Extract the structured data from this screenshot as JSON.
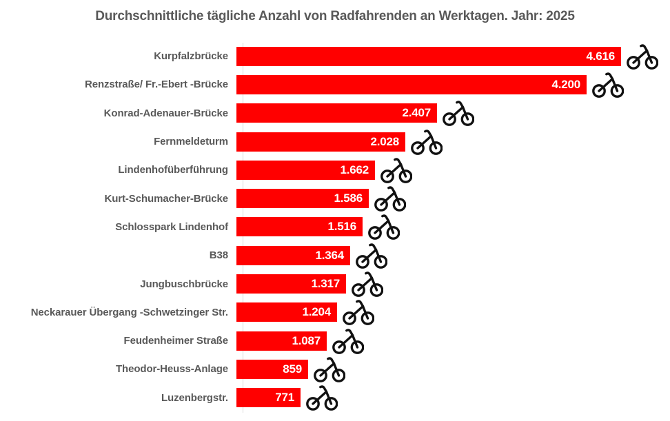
{
  "title": "Durchschnittliche tägliche Anzahl von Radfahrenden an Werktagen. Jahr: 2025",
  "colors": {
    "bar": "#ff0000",
    "value_text": "#ffffff",
    "label_text": "#595959",
    "title_text": "#595959",
    "axis_line": "#d9d9d9",
    "bike_icon": "#111111",
    "background": "#ffffff"
  },
  "icons": {
    "bar_end_icon": "bicycle-icon"
  },
  "chart_data": {
    "type": "bar",
    "orientation": "horizontal",
    "title": "Durchschnittliche tägliche Anzahl von Radfahrenden an Werktagen. Jahr: 2025",
    "xlabel": "",
    "ylabel": "",
    "grid": false,
    "legend": false,
    "xlim": [
      0,
      4616
    ],
    "categories": [
      "Kurpfalzbrücke",
      "Renzstraße/ Fr.-Ebert -Brücke",
      "Konrad-Adenauer-Brücke",
      "Fernmeldeturm",
      "Lindenhofüberführung",
      "Kurt-Schumacher-Brücke",
      "Schlosspark Lindenhof",
      "B38",
      "Jungbuschbrücke",
      "Neckarauer Übergang -Schwetzinger Str.",
      "Feudenheimer Straße",
      "Theodor-Heuss-Anlage",
      "Luzenbergstr."
    ],
    "values": [
      4616,
      4200,
      2407,
      2028,
      1662,
      1586,
      1516,
      1364,
      1317,
      1204,
      1087,
      859,
      771
    ],
    "value_labels": [
      "4.616",
      "4.200",
      "2.407",
      "2.028",
      "1.662",
      "1.586",
      "1.516",
      "1.364",
      "1.317",
      "1.204",
      "1.087",
      "859",
      "771"
    ]
  }
}
